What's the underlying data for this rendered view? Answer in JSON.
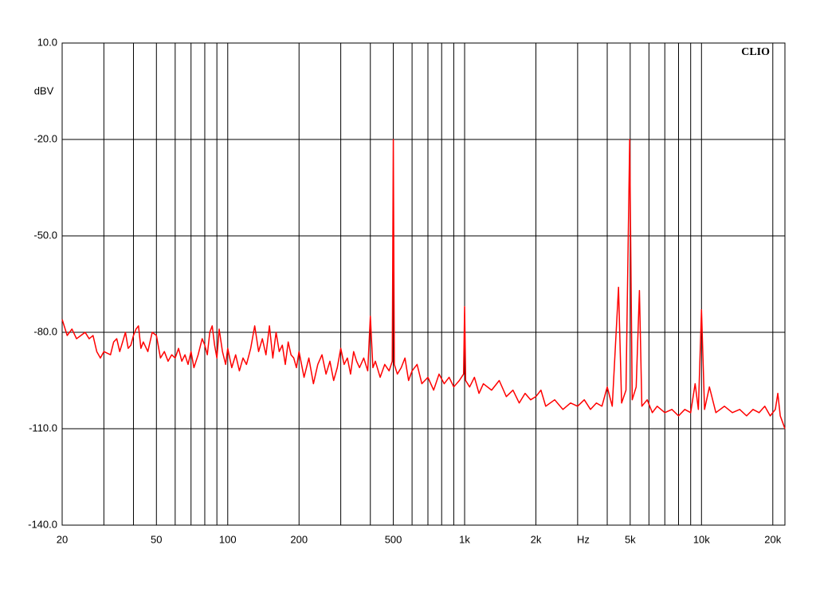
{
  "chart_data": {
    "type": "line",
    "annotation": "CLIO",
    "y_label": "dBV",
    "x_label": "Hz",
    "xscale": "log",
    "xlim": [
      20,
      22500
    ],
    "ylim": [
      -140,
      10
    ],
    "yticks": [
      {
        "value": 10,
        "label": "10.0"
      },
      {
        "value": -20,
        "label": "-20.0"
      },
      {
        "value": -50,
        "label": "-50.0"
      },
      {
        "value": -80,
        "label": "-80.0"
      },
      {
        "value": -110,
        "label": "-110.0"
      },
      {
        "value": -140,
        "label": "-140.0"
      }
    ],
    "xticks": [
      20,
      50,
      100,
      200,
      500,
      {
        "value": 1000,
        "label": "1k"
      },
      {
        "value": 2000,
        "label": "2k"
      },
      {
        "value": 5000,
        "label": "5k"
      },
      {
        "value": 10000,
        "label": "10k"
      },
      {
        "value": 20000,
        "label": "20k"
      }
    ],
    "xgrid": [
      30,
      40,
      60,
      70,
      80,
      90,
      300,
      400,
      600,
      700,
      800,
      900,
      3000,
      4000,
      6000,
      7000,
      8000,
      9000
    ],
    "grid": true,
    "x": [
      20,
      21,
      22,
      23,
      24,
      25,
      26,
      27,
      28,
      29,
      30,
      32,
      33,
      34,
      35,
      36,
      37,
      38,
      39,
      40,
      41,
      42,
      43,
      44,
      46,
      48,
      50,
      52,
      54,
      56,
      58,
      60,
      62,
      64,
      66,
      68,
      70,
      72,
      75,
      78,
      80,
      82,
      84,
      86,
      88,
      90,
      92,
      95,
      98,
      100,
      104,
      108,
      112,
      116,
      120,
      125,
      130,
      135,
      140,
      145,
      150,
      155,
      160,
      165,
      170,
      175,
      180,
      185,
      190,
      195,
      200,
      210,
      220,
      230,
      240,
      250,
      260,
      270,
      280,
      290,
      300,
      310,
      320,
      330,
      340,
      350,
      360,
      375,
      390,
      400,
      410,
      420,
      440,
      460,
      480,
      495,
      500,
      505,
      520,
      540,
      560,
      580,
      600,
      630,
      660,
      700,
      740,
      780,
      820,
      860,
      900,
      950,
      990,
      1000,
      1010,
      1050,
      1100,
      1150,
      1200,
      1300,
      1400,
      1500,
      1600,
      1700,
      1800,
      1900,
      2000,
      2100,
      2200,
      2400,
      2600,
      2800,
      3000,
      3200,
      3400,
      3600,
      3800,
      4000,
      4200,
      4464,
      4600,
      4800,
      4976,
      5100,
      5300,
      5470,
      5600,
      5900,
      6200,
      6500,
      7000,
      7500,
      8000,
      8500,
      9000,
      9400,
      9700,
      10000,
      10300,
      10800,
      11500,
      12500,
      13500,
      14500,
      15500,
      16500,
      17500,
      18500,
      19500,
      20500,
      21000,
      21500,
      22000,
      22500
    ],
    "series": [
      {
        "color": "#ff0000",
        "values": [
          -76,
          -81,
          -79,
          -82,
          -81,
          -80,
          -82,
          -81,
          -86,
          -88,
          -86,
          -87,
          -83,
          -82,
          -86,
          -83,
          -80,
          -85,
          -84,
          -81,
          -79,
          -78,
          -85,
          -83,
          -86,
          -80,
          -81,
          -88,
          -86,
          -89,
          -87,
          -88,
          -85,
          -89,
          -87,
          -90,
          -86,
          -91,
          -87,
          -82,
          -84,
          -87,
          -80,
          -78,
          -84,
          -88,
          -79,
          -86,
          -90,
          -85,
          -91,
          -87,
          -92,
          -88,
          -90,
          -85,
          -78,
          -86,
          -82,
          -87,
          -78,
          -88,
          -80,
          -86,
          -84,
          -90,
          -83,
          -87,
          -88,
          -91,
          -86,
          -94,
          -88,
          -96,
          -90,
          -87,
          -93,
          -89,
          -95,
          -91,
          -85,
          -90,
          -88,
          -93,
          -86,
          -89,
          -91,
          -88,
          -92,
          -75,
          -91,
          -89,
          -94,
          -90,
          -92,
          -89,
          -20,
          -90,
          -93,
          -91,
          -88,
          -95,
          -92,
          -90,
          -96,
          -94,
          -98,
          -93,
          -96,
          -94,
          -97,
          -95,
          -93,
          -72,
          -95,
          -97,
          -94,
          -99,
          -96,
          -98,
          -95,
          -100,
          -98,
          -102,
          -99,
          -101,
          -100,
          -98,
          -103,
          -101,
          -104,
          -102,
          -103,
          -101,
          -104,
          -102,
          -103,
          -97,
          -103,
          -66,
          -102,
          -98,
          -20,
          -101,
          -97,
          -67,
          -103,
          -101,
          -105,
          -103,
          -105,
          -104,
          -106,
          -104,
          -105,
          -96,
          -104,
          -73,
          -104,
          -97,
          -105,
          -103,
          -105,
          -104,
          -106,
          -104,
          -105,
          -103,
          -106,
          -104,
          -99,
          -106,
          -108,
          -110
        ]
      }
    ]
  }
}
